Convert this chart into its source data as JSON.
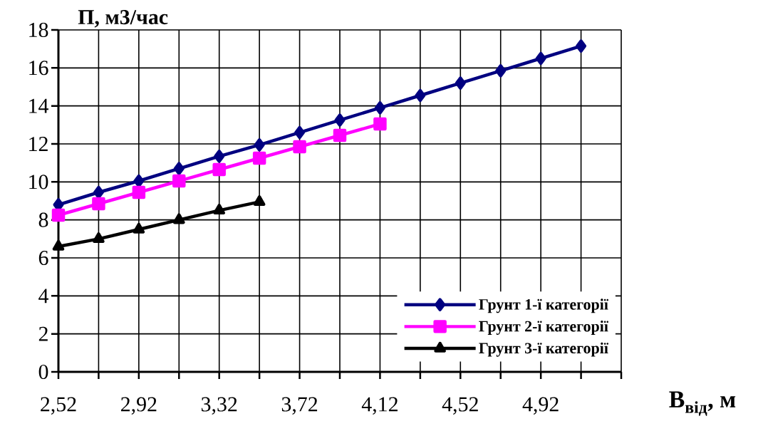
{
  "chart_data": {
    "type": "line",
    "ylabel": "П, м3/час",
    "xlabel": "В$_{від}$, м",
    "xlim": [
      2.52,
      5.32
    ],
    "ylim": [
      0,
      18
    ],
    "xticks": [
      {
        "value": 2.52,
        "label": "2,52"
      },
      {
        "value": 2.72,
        "label": null
      },
      {
        "value": 2.92,
        "label": "2,92"
      },
      {
        "value": 3.12,
        "label": null
      },
      {
        "value": 3.32,
        "label": "3,32"
      },
      {
        "value": 3.52,
        "label": null
      },
      {
        "value": 3.72,
        "label": "3,72"
      },
      {
        "value": 3.92,
        "label": null
      },
      {
        "value": 4.12,
        "label": "4,12"
      },
      {
        "value": 4.32,
        "label": null
      },
      {
        "value": 4.52,
        "label": "4,52"
      },
      {
        "value": 4.72,
        "label": null
      },
      {
        "value": 4.92,
        "label": "4,92"
      },
      {
        "value": 5.12,
        "label": null
      },
      {
        "value": 5.32,
        "label": null
      }
    ],
    "yticks": [
      0,
      2,
      4,
      6,
      8,
      10,
      12,
      14,
      16,
      18
    ],
    "grid": true,
    "legend": "bottom right",
    "x": [
      2.52,
      2.72,
      2.92,
      3.12,
      3.32,
      3.52,
      3.72,
      3.92,
      4.12,
      4.32,
      4.52,
      4.72,
      4.92,
      5.12
    ],
    "series": [
      {
        "name": "Грунт 1-ї категорії",
        "color": "#000080",
        "marker": "diamond",
        "values": [
          8.8,
          9.45,
          10.05,
          10.7,
          11.35,
          11.95,
          12.6,
          13.25,
          13.9,
          14.55,
          15.2,
          15.85,
          16.5,
          17.15
        ]
      },
      {
        "name": "Грунт 2-ї категорії",
        "color": "#ff00ff",
        "marker": "square",
        "values": [
          8.25,
          8.85,
          9.45,
          10.05,
          10.65,
          11.25,
          11.85,
          12.45,
          13.05,
          null,
          null,
          null,
          null,
          null
        ]
      },
      {
        "name": "Грунт 3-ї категорії",
        "color": "#000000",
        "marker": "triangle",
        "values": [
          6.6,
          7.0,
          7.5,
          8.0,
          8.5,
          8.95,
          null,
          null,
          null,
          null,
          null,
          null,
          null,
          null
        ]
      }
    ]
  }
}
